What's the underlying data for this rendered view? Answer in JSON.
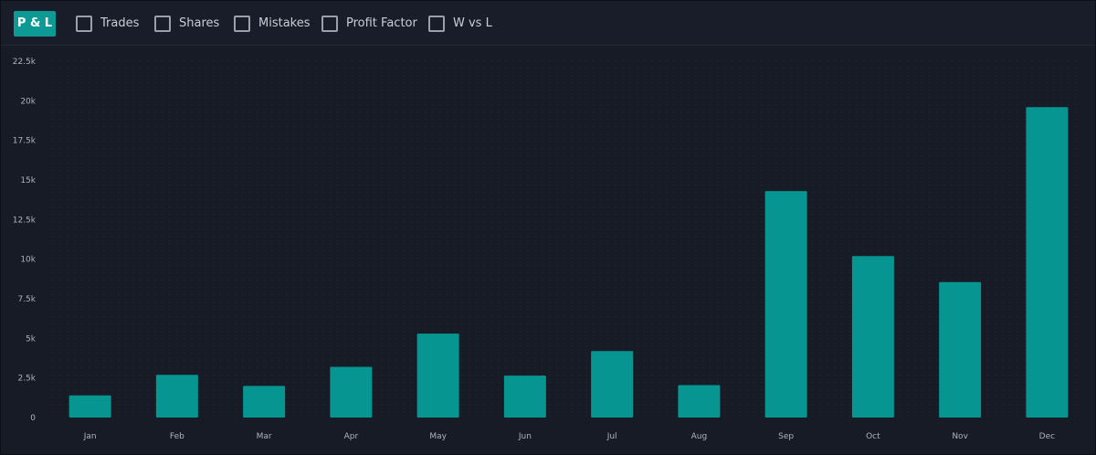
{
  "toolbar": {
    "active_tab": "P & L",
    "toggles": [
      {
        "label": "Trades",
        "checked": false
      },
      {
        "label": "Shares",
        "checked": false
      },
      {
        "label": "Mistakes",
        "checked": false
      },
      {
        "label": "Profit Factor",
        "checked": false
      },
      {
        "label": "W vs L",
        "checked": false
      }
    ]
  },
  "colors": {
    "background": "#161b26",
    "accent": "#0e9a94",
    "bar": "#069590",
    "tick_text": "#aeb4bd",
    "grid_dot": "#2a303c"
  },
  "chart_data": {
    "type": "bar",
    "categories": [
      "Jan",
      "Feb",
      "Mar",
      "Apr",
      "May",
      "Jun",
      "Jul",
      "Aug",
      "Sep",
      "Oct",
      "Nov",
      "Dec"
    ],
    "values": [
      1400,
      2700,
      2000,
      3200,
      5300,
      2650,
      4200,
      2050,
      14300,
      10200,
      8550,
      19600
    ],
    "ylim": [
      0,
      22500
    ],
    "yticks": [
      0,
      2500,
      5000,
      7500,
      10000,
      12500,
      15000,
      17500,
      20000,
      22500
    ],
    "ytick_labels": [
      "0",
      "2.5k",
      "5k",
      "7.5k",
      "10k",
      "12.5k",
      "15k",
      "17.5k",
      "20k",
      "22.5k"
    ],
    "grid": "dotted",
    "legend": "none"
  }
}
